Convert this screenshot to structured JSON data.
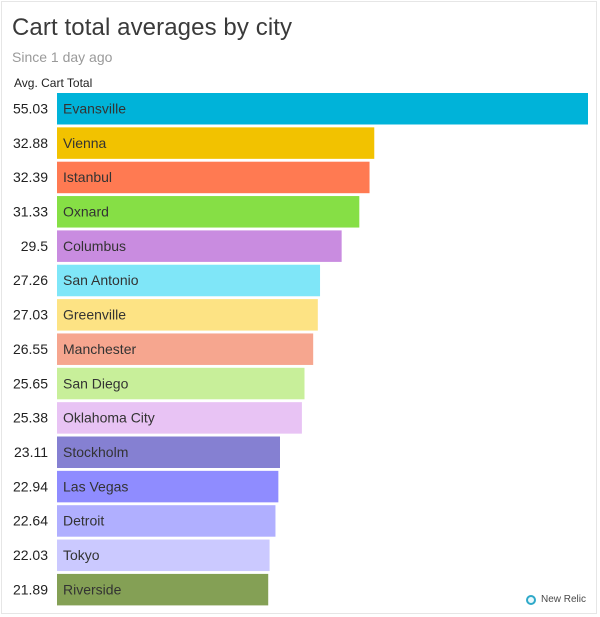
{
  "header": {
    "title": "Cart total averages by city",
    "subtitle": "Since 1 day ago",
    "measure_label": "Avg. Cart Total"
  },
  "footer": {
    "brand": "New Relic",
    "brand_icon": "new-relic-icon"
  },
  "chart_data": {
    "type": "bar",
    "orientation": "horizontal",
    "title": "Cart total averages by city",
    "subtitle": "Since 1 day ago",
    "ylabel": "Avg. Cart Total",
    "grid": false,
    "xlim": [
      0,
      55.03
    ],
    "categories": [
      "Evansville",
      "Vienna",
      "Istanbul",
      "Oxnard",
      "Columbus",
      "San Antonio",
      "Greenville",
      "Manchester",
      "San Diego",
      "Oklahoma City",
      "Stockholm",
      "Las Vegas",
      "Detroit",
      "Tokyo",
      "Riverside"
    ],
    "values": [
      55.03,
      32.88,
      32.39,
      31.33,
      29.5,
      27.26,
      27.03,
      26.55,
      25.65,
      25.38,
      23.11,
      22.94,
      22.64,
      22.03,
      21.89
    ],
    "value_labels": [
      "55.03",
      "32.88",
      "32.39",
      "31.33",
      "29.5",
      "27.26",
      "27.03",
      "26.55",
      "25.65",
      "25.38",
      "23.11",
      "22.94",
      "22.64",
      "22.03",
      "21.89"
    ],
    "colors": [
      "#00b3d9",
      "#f2c200",
      "#ff7a52",
      "#86df45",
      "#c98ce0",
      "#7fe6f8",
      "#fde384",
      "#f6a68f",
      "#c8ef9a",
      "#e8c3f4",
      "#8580d2",
      "#8f8cff",
      "#b0afff",
      "#cbc9ff",
      "#84a055"
    ]
  }
}
